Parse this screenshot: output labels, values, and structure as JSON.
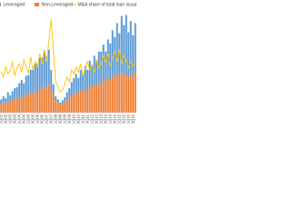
{
  "chart_data": {
    "type": "bar",
    "stacked": true,
    "categories": [
      "1Q02",
      null,
      "3Q02",
      null,
      "1Q03",
      null,
      "3Q03",
      null,
      "1Q04",
      null,
      "3Q04",
      null,
      "1Q05",
      null,
      "3Q05",
      null,
      "1Q06",
      null,
      "3Q06",
      null,
      "1Q07",
      null,
      "3Q07",
      null,
      "1Q08",
      null,
      "3Q08",
      null,
      "1Q09",
      null,
      "3Q09",
      null,
      "1Q10",
      null,
      "3Q10",
      null,
      "1Q11",
      null,
      "3Q11",
      null,
      "1Q12",
      null,
      "3Q12",
      null,
      "1Q13",
      null,
      "3Q13",
      null,
      "1Q14",
      null,
      "3Q14",
      null,
      "1Q15",
      null,
      "3Q15",
      null,
      "1Q16",
      null,
      "3Q16",
      null
    ],
    "series": [
      {
        "name": "Non-Leveraged",
        "color": "#ed7d31",
        "values": [
          8,
          10,
          9,
          12,
          10,
          12,
          14,
          13,
          15,
          16,
          14,
          18,
          17,
          20,
          18,
          22,
          20,
          24,
          22,
          26,
          25,
          28,
          22,
          18,
          12,
          10,
          8,
          9,
          10,
          12,
          14,
          16,
          18,
          20,
          19,
          22,
          20,
          24,
          22,
          26,
          25,
          28,
          26,
          30,
          28,
          32,
          30,
          34,
          32,
          36,
          34,
          38,
          36,
          40,
          38,
          36,
          34,
          38,
          36,
          40
        ]
      },
      {
        "name": "Leveraged",
        "color": "#5b9bd5",
        "values": [
          5,
          6,
          5,
          8,
          7,
          9,
          10,
          12,
          14,
          16,
          15,
          18,
          20,
          22,
          24,
          26,
          28,
          30,
          32,
          35,
          30,
          34,
          20,
          10,
          4,
          3,
          2,
          3,
          5,
          8,
          10,
          14,
          16,
          18,
          15,
          20,
          18,
          22,
          20,
          25,
          22,
          28,
          26,
          30,
          32,
          35,
          30,
          38,
          36,
          45,
          40,
          50,
          42,
          55,
          48,
          60,
          45,
          52,
          40,
          48
        ]
      },
      {
        "name": "M&A share of total loan issuance",
        "color": "#ffc000",
        "type": "line",
        "axis": "y2",
        "values": [
          40,
          35,
          45,
          38,
          42,
          50,
          36,
          44,
          48,
          40,
          52,
          46,
          38,
          55,
          42,
          50,
          45,
          58,
          48,
          62,
          50,
          70,
          92,
          60,
          30,
          25,
          20,
          22,
          28,
          35,
          30,
          42,
          38,
          45,
          40,
          48,
          36,
          44,
          50,
          42,
          46,
          40,
          52,
          44,
          48,
          56,
          50,
          58,
          46,
          54,
          60,
          50,
          62,
          48,
          56,
          52,
          44,
          50,
          46,
          48
        ]
      }
    ],
    "ylim": [
      0,
      100
    ],
    "y2lim": [
      0,
      100
    ]
  }
}
